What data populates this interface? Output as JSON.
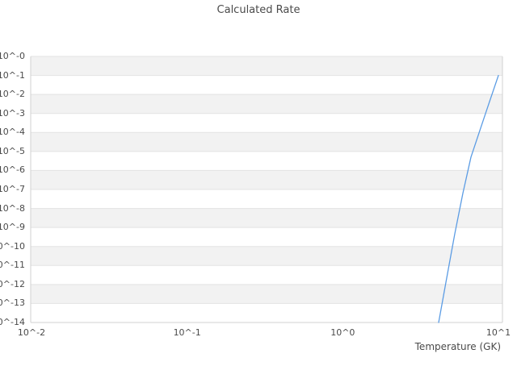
{
  "window": {
    "background": "#ffffff"
  },
  "chart_data": {
    "type": "line",
    "title": "Calculated Rate",
    "xlabel": "Temperature (GK)",
    "ylabel": "",
    "x_scale": "log",
    "y_scale": "log",
    "x_log_range": [
      -2,
      1
    ],
    "y_log_range": [
      -14,
      0
    ],
    "xticks": [
      "10^-2",
      "10^-1",
      "10^0",
      "10^1"
    ],
    "yticks": [
      "10^-0",
      "10^-1",
      "10^-2",
      "10^-3",
      "10^-4",
      "10^-5",
      "10^-6",
      "10^-7",
      "10^-8",
      "10^-9",
      "10^-10",
      "10^-11",
      "10^-12",
      "10^-13",
      "10^-14"
    ],
    "grid": "horizontal-decade-bands",
    "legend": "none",
    "colors": {
      "band": "#f2f2f2",
      "band_alt": "#ffffff",
      "grid": "#e3e3e3",
      "spine": "#d2d2d2",
      "text": "#4a4a4a",
      "line": "#5b9ce4"
    },
    "series": [
      {
        "name": "Calculated Rate",
        "color": "#5b9ce4",
        "points": [
          {
            "T_GK": 4.13,
            "rate": 1e-14
          },
          {
            "T_GK": 4.6,
            "rate": 1.3e-12
          },
          {
            "T_GK": 5.24,
            "rate": 4.5e-10
          },
          {
            "T_GK": 5.91,
            "rate": 6.3e-08
          },
          {
            "T_GK": 6.66,
            "rate": 5e-06
          },
          {
            "T_GK": 7.67,
            "rate": 0.00016
          },
          {
            "T_GK": 8.67,
            "rate": 0.0032
          },
          {
            "T_GK": 10.0,
            "rate": 0.1
          }
        ]
      }
    ]
  }
}
